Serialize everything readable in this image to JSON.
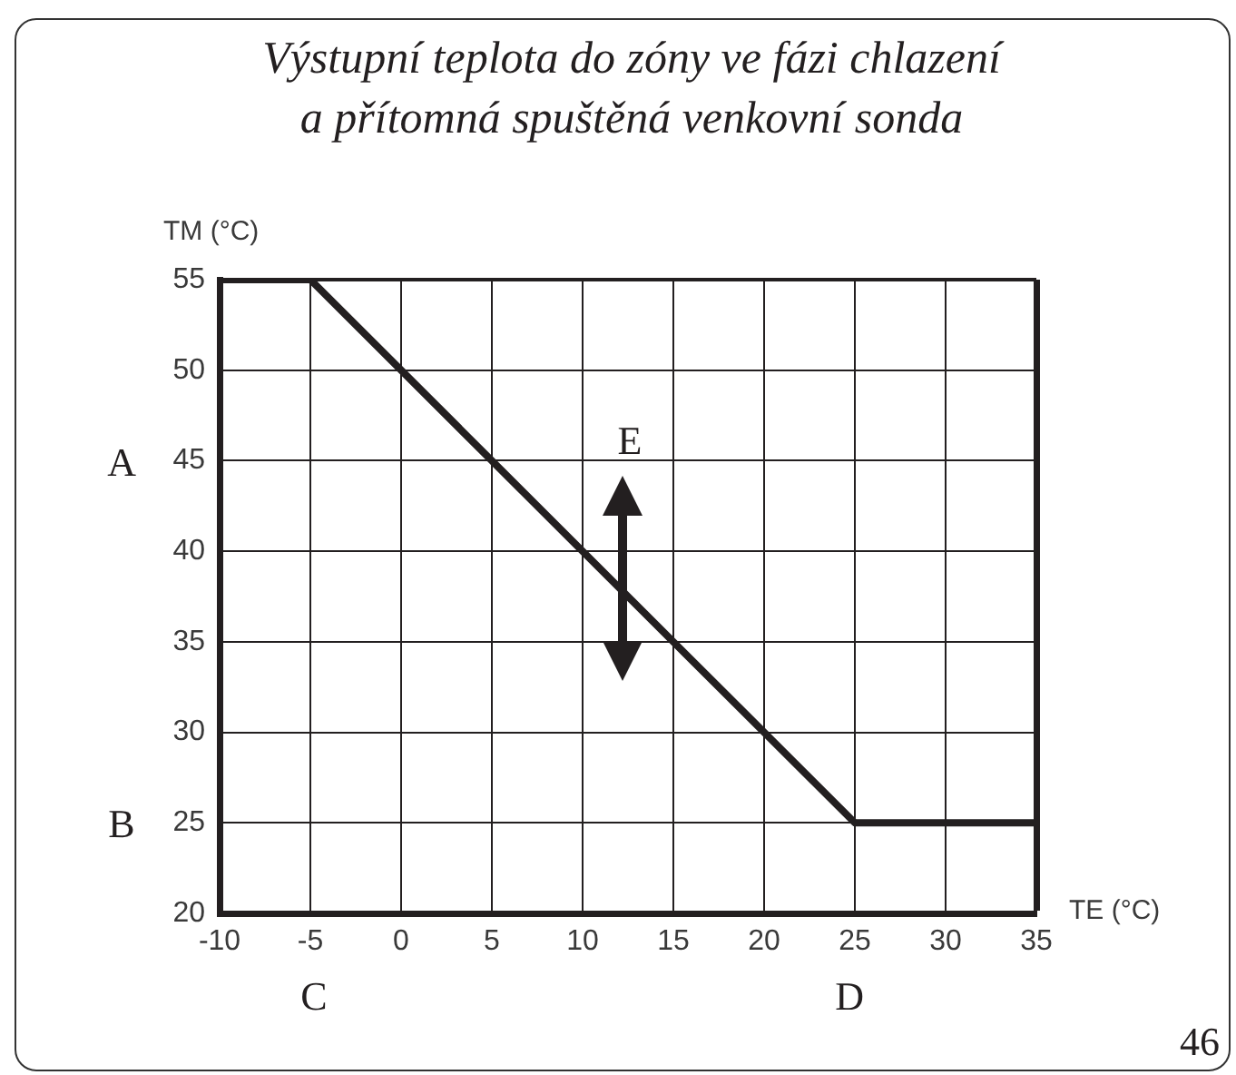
{
  "chart_data": {
    "type": "line",
    "title": "Výstupní teplota do zóny ve fázi chlazení\na přítomná spuštěná venkovní sonda",
    "xlabel": "TE (°C)",
    "ylabel": "TM (°C)",
    "x": [
      -10,
      -5,
      25,
      35
    ],
    "values": [
      55,
      55,
      25,
      25
    ],
    "color": "#231f20",
    "xlim": [
      -10,
      35
    ],
    "xticks": [
      -10,
      -5,
      0,
      5,
      10,
      15,
      20,
      25,
      30,
      35
    ],
    "ylim": [
      20,
      55
    ],
    "yticks": [
      20,
      25,
      30,
      35,
      40,
      45,
      50,
      55
    ],
    "grid": true,
    "line_style": "solid",
    "annotations": [
      "A",
      "B",
      "C",
      "D",
      "E",
      "46"
    ]
  }
}
